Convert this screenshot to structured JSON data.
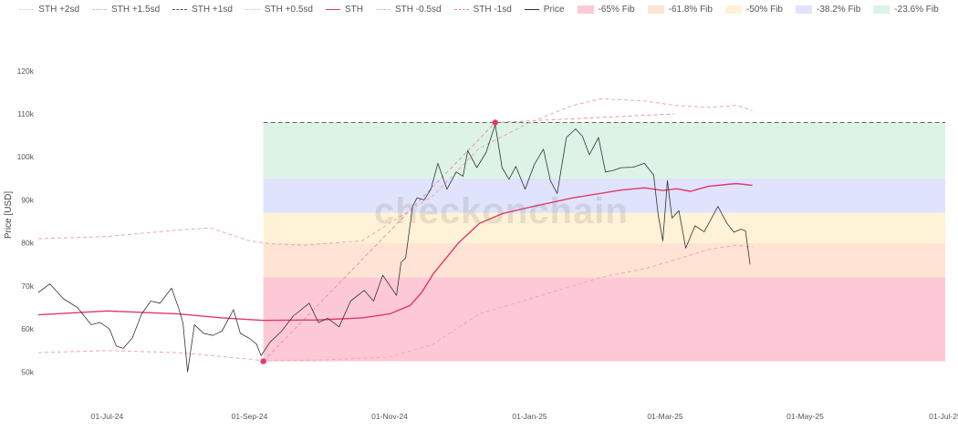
{
  "chart_data": {
    "type": "line",
    "title": "",
    "xlabel": "",
    "ylabel": "Price [USD]",
    "watermark": "checkonchain",
    "ylim": [
      45000,
      128000
    ],
    "xlim": [
      "2024-06-01",
      "2025-07-01"
    ],
    "yticks": [
      {
        "value": 50000,
        "label": "50k"
      },
      {
        "value": 60000,
        "label": "60k"
      },
      {
        "value": 70000,
        "label": "70k"
      },
      {
        "value": 80000,
        "label": "80k"
      },
      {
        "value": 90000,
        "label": "90k"
      },
      {
        "value": 100000,
        "label": "100k"
      },
      {
        "value": 110000,
        "label": "110k"
      },
      {
        "value": 120000,
        "label": "120k"
      }
    ],
    "xticks": [
      {
        "date": "2024-07-01",
        "label": "01-Jul-24"
      },
      {
        "date": "2024-09-01",
        "label": "01-Sep-24"
      },
      {
        "date": "2024-11-01",
        "label": "01-Nov-24"
      },
      {
        "date": "2025-01-01",
        "label": "01-Jan-25"
      },
      {
        "date": "2025-03-01",
        "label": "01-Mar-25"
      },
      {
        "date": "2025-05-01",
        "label": "01-May-25"
      },
      {
        "date": "2025-07-01",
        "label": "01-Jul-25"
      }
    ],
    "legend": [
      {
        "name": "STH +2sd",
        "kind": "line",
        "color": "#f4c7cf",
        "dash": "5,3"
      },
      {
        "name": "STH +1.5sd",
        "kind": "line",
        "color": "#f0b5bf",
        "dash": "5,3"
      },
      {
        "name": "STH +1sd",
        "kind": "line",
        "color": "#555555",
        "dash": "5,3"
      },
      {
        "name": "STH +0.5sd",
        "kind": "line",
        "color": "#f2c9a0",
        "dash": "5,3"
      },
      {
        "name": "STH",
        "kind": "line",
        "color": "#e0386a",
        "dash": ""
      },
      {
        "name": "STH -0.5sd",
        "kind": "line",
        "color": "#eebfa8",
        "dash": "5,3"
      },
      {
        "name": "STH -1sd",
        "kind": "line",
        "color": "#e8869c",
        "dash": "5,3"
      },
      {
        "name": "Price",
        "kind": "line",
        "color": "#333333",
        "dash": ""
      },
      {
        "name": "-65% Fib",
        "kind": "box",
        "color": "#fdc9d6"
      },
      {
        "name": "-61.8% Fib",
        "kind": "box",
        "color": "#ffe3d4"
      },
      {
        "name": "-50% Fib",
        "kind": "box",
        "color": "#fff2d6"
      },
      {
        "name": "-38.2% Fib",
        "kind": "box",
        "color": "#dfe3fb"
      },
      {
        "name": "-23.6% Fib",
        "kind": "box",
        "color": "#dcf3e6"
      }
    ],
    "fib_zones": {
      "start": "2024-09-07",
      "end": "2025-07-01",
      "bands": [
        {
          "name": "-65% Fib",
          "from": 52500,
          "to": 72000,
          "color": "#fdc9d6"
        },
        {
          "name": "-61.8% Fib",
          "from": 72000,
          "to": 80000,
          "color": "#ffe3d4"
        },
        {
          "name": "-50% Fib",
          "from": 80000,
          "to": 87000,
          "color": "#fff2d6"
        },
        {
          "name": "-38.2% Fib",
          "from": 87000,
          "to": 95000,
          "color": "#dfe3fb"
        },
        {
          "name": "-23.6% Fib",
          "from": 95000,
          "to": 108000,
          "color": "#dcf3e6"
        }
      ],
      "top_line": 108000
    },
    "markers": [
      {
        "date": "2024-09-07",
        "value": 52500
      },
      {
        "date": "2024-12-17",
        "value": 108000
      }
    ],
    "connector": [
      {
        "date": "2024-09-07",
        "value": 52500
      },
      {
        "date": "2024-12-17",
        "value": 108000
      },
      {
        "date": "2025-03-05",
        "value": 110000
      }
    ],
    "series": [
      {
        "name": "STH",
        "color": "#e0386a",
        "dash": "",
        "width": 1.4,
        "points": [
          [
            "2024-06-01",
            63300
          ],
          [
            "2024-07-01",
            64200
          ],
          [
            "2024-08-01",
            63500
          ],
          [
            "2024-08-20",
            62600
          ],
          [
            "2024-09-07",
            62000
          ],
          [
            "2024-10-01",
            62100
          ],
          [
            "2024-10-20",
            62600
          ],
          [
            "2024-11-01",
            63500
          ],
          [
            "2024-11-10",
            65500
          ],
          [
            "2024-11-15",
            68500
          ],
          [
            "2024-11-20",
            72800
          ],
          [
            "2024-12-01",
            80000
          ],
          [
            "2024-12-10",
            84500
          ],
          [
            "2024-12-20",
            86800
          ],
          [
            "2025-01-01",
            88300
          ],
          [
            "2025-01-20",
            90500
          ],
          [
            "2025-02-10",
            92300
          ],
          [
            "2025-02-20",
            92800
          ],
          [
            "2025-02-28",
            92200
          ],
          [
            "2025-03-06",
            92600
          ],
          [
            "2025-03-12",
            92000
          ],
          [
            "2025-03-20",
            93200
          ],
          [
            "2025-04-01",
            93800
          ],
          [
            "2025-04-08",
            93400
          ]
        ]
      },
      {
        "name": "STH +1sd",
        "color": "#f0a7b4",
        "dash": "4,3",
        "width": 1,
        "points": [
          [
            "2024-06-01",
            81000
          ],
          [
            "2024-07-01",
            81500
          ],
          [
            "2024-08-01",
            83000
          ],
          [
            "2024-08-15",
            83500
          ],
          [
            "2024-09-01",
            80500
          ],
          [
            "2024-09-10",
            79800
          ],
          [
            "2024-09-25",
            79500
          ],
          [
            "2024-10-20",
            80500
          ],
          [
            "2024-11-20",
            91000
          ],
          [
            "2024-12-10",
            102000
          ],
          [
            "2025-01-01",
            108000
          ],
          [
            "2025-01-20",
            112000
          ],
          [
            "2025-02-01",
            113500
          ],
          [
            "2025-02-20",
            113000
          ],
          [
            "2025-03-05",
            112000
          ],
          [
            "2025-03-20",
            111500
          ],
          [
            "2025-04-01",
            112000
          ],
          [
            "2025-04-08",
            110800
          ]
        ]
      },
      {
        "name": "STH -1sd",
        "color": "#f0a7b4",
        "dash": "4,3",
        "width": 1,
        "points": [
          [
            "2024-06-01",
            54500
          ],
          [
            "2024-07-01",
            55000
          ],
          [
            "2024-08-01",
            54500
          ],
          [
            "2024-09-01",
            53000
          ],
          [
            "2024-09-07",
            52600
          ],
          [
            "2024-10-01",
            52800
          ],
          [
            "2024-11-01",
            53500
          ],
          [
            "2024-11-20",
            56500
          ],
          [
            "2024-12-10",
            63500
          ],
          [
            "2025-01-01",
            67000
          ],
          [
            "2025-02-01",
            72000
          ],
          [
            "2025-02-20",
            74000
          ],
          [
            "2025-03-05",
            76000
          ],
          [
            "2025-03-20",
            78500
          ],
          [
            "2025-04-01",
            79500
          ],
          [
            "2025-04-08",
            79000
          ]
        ]
      },
      {
        "name": "Price",
        "color": "#333333",
        "dash": "",
        "width": 0.8,
        "points": [
          [
            "2024-06-01",
            68500
          ],
          [
            "2024-06-06",
            70500
          ],
          [
            "2024-06-12",
            67000
          ],
          [
            "2024-06-18",
            65000
          ],
          [
            "2024-06-24",
            61000
          ],
          [
            "2024-06-28",
            61500
          ],
          [
            "2024-07-02",
            60000
          ],
          [
            "2024-07-05",
            56000
          ],
          [
            "2024-07-08",
            55500
          ],
          [
            "2024-07-12",
            58000
          ],
          [
            "2024-07-16",
            63500
          ],
          [
            "2024-07-20",
            66500
          ],
          [
            "2024-07-24",
            66000
          ],
          [
            "2024-07-29",
            69500
          ],
          [
            "2024-08-01",
            65000
          ],
          [
            "2024-08-03",
            61500
          ],
          [
            "2024-08-05",
            50000
          ],
          [
            "2024-08-08",
            61000
          ],
          [
            "2024-08-12",
            59000
          ],
          [
            "2024-08-16",
            58500
          ],
          [
            "2024-08-20",
            59500
          ],
          [
            "2024-08-25",
            64500
          ],
          [
            "2024-08-28",
            59000
          ],
          [
            "2024-09-01",
            57800
          ],
          [
            "2024-09-04",
            56500
          ],
          [
            "2024-09-06",
            53800
          ],
          [
            "2024-09-10",
            57000
          ],
          [
            "2024-09-15",
            59500
          ],
          [
            "2024-09-20",
            63000
          ],
          [
            "2024-09-27",
            66000
          ],
          [
            "2024-10-01",
            61500
          ],
          [
            "2024-10-05",
            62500
          ],
          [
            "2024-10-10",
            60500
          ],
          [
            "2024-10-15",
            66500
          ],
          [
            "2024-10-21",
            69000
          ],
          [
            "2024-10-25",
            66500
          ],
          [
            "2024-10-29",
            72500
          ],
          [
            "2024-11-04",
            67800
          ],
          [
            "2024-11-06",
            75500
          ],
          [
            "2024-11-08",
            76500
          ],
          [
            "2024-11-11",
            88500
          ],
          [
            "2024-11-13",
            90500
          ],
          [
            "2024-11-16",
            90000
          ],
          [
            "2024-11-19",
            92500
          ],
          [
            "2024-11-22",
            98500
          ],
          [
            "2024-11-26",
            92500
          ],
          [
            "2024-11-30",
            96500
          ],
          [
            "2024-12-03",
            95500
          ],
          [
            "2024-12-05",
            101500
          ],
          [
            "2024-12-09",
            97500
          ],
          [
            "2024-12-13",
            101000
          ],
          [
            "2024-12-17",
            107500
          ],
          [
            "2024-12-20",
            97500
          ],
          [
            "2024-12-23",
            94800
          ],
          [
            "2024-12-26",
            97800
          ],
          [
            "2024-12-30",
            92500
          ],
          [
            "2025-01-03",
            98200
          ],
          [
            "2025-01-07",
            101800
          ],
          [
            "2025-01-10",
            94500
          ],
          [
            "2025-01-13",
            91500
          ],
          [
            "2025-01-17",
            104500
          ],
          [
            "2025-01-21",
            106500
          ],
          [
            "2025-01-24",
            104800
          ],
          [
            "2025-01-27",
            100500
          ],
          [
            "2025-01-31",
            104500
          ],
          [
            "2025-02-03",
            96500
          ],
          [
            "2025-02-06",
            96800
          ],
          [
            "2025-02-10",
            97500
          ],
          [
            "2025-02-15",
            97600
          ],
          [
            "2025-02-20",
            98500
          ],
          [
            "2025-02-24",
            95800
          ],
          [
            "2025-02-26",
            86500
          ],
          [
            "2025-02-28",
            80500
          ],
          [
            "2025-03-02",
            94500
          ],
          [
            "2025-03-04",
            85800
          ],
          [
            "2025-03-07",
            87500
          ],
          [
            "2025-03-10",
            78800
          ],
          [
            "2025-03-14",
            84000
          ],
          [
            "2025-03-18",
            82600
          ],
          [
            "2025-03-24",
            88500
          ],
          [
            "2025-03-28",
            84500
          ],
          [
            "2025-03-31",
            82500
          ],
          [
            "2025-04-03",
            83200
          ],
          [
            "2025-04-05",
            82800
          ],
          [
            "2025-04-07",
            75000
          ]
        ]
      }
    ]
  }
}
